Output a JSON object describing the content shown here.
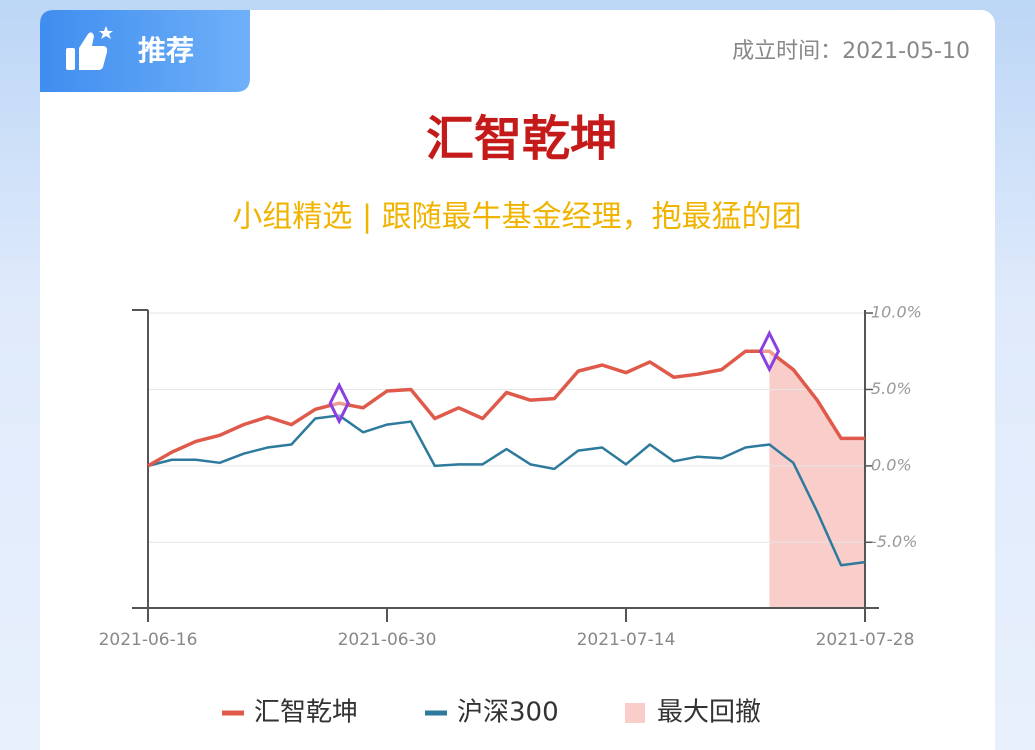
{
  "header": {
    "badge": "推荐",
    "founded": "成立时间：2021-05-10",
    "title": "汇智乾坤",
    "subtitle": "小组精选 | 跟随最牛基金经理，抱最猛的团"
  },
  "chart_data": {
    "type": "line",
    "categories": [
      "2021-06-16",
      null,
      null,
      null,
      null,
      null,
      null,
      null,
      null,
      null,
      "2021-06-30",
      null,
      null,
      null,
      null,
      null,
      null,
      null,
      null,
      null,
      "2021-07-14",
      null,
      null,
      null,
      null,
      null,
      null,
      null,
      null,
      null,
      "2021-07-28"
    ],
    "series": [
      {
        "name": "汇智乾坤",
        "color": "#e05a4b",
        "values": [
          0,
          0.9,
          1.6,
          2.0,
          2.7,
          3.2,
          2.7,
          3.7,
          4.1,
          3.8,
          4.9,
          5.0,
          3.1,
          3.8,
          3.1,
          4.8,
          4.3,
          4.4,
          6.2,
          6.6,
          6.1,
          6.8,
          5.8,
          6.0,
          6.3,
          7.5,
          7.5,
          6.3,
          4.3,
          1.8,
          1.8
        ]
      },
      {
        "name": "沪深300",
        "color": "#2e7a9c",
        "values": [
          0,
          0.4,
          0.4,
          0.2,
          0.8,
          1.2,
          1.4,
          3.1,
          3.3,
          2.2,
          2.7,
          2.9,
          0.0,
          0.1,
          0.1,
          1.1,
          0.1,
          -0.2,
          1.0,
          1.2,
          0.1,
          1.4,
          0.3,
          0.6,
          0.5,
          1.2,
          1.4,
          0.2,
          -3.0,
          -6.5,
          -6.3
        ]
      }
    ],
    "drawdown": {
      "name": "最大回撤",
      "color": "#f9cdca",
      "from": 26,
      "to": 30
    },
    "markers": {
      "color": "#8a3fe0",
      "points": [
        8,
        26
      ]
    },
    "ylim": [
      -9.3,
      10.2
    ],
    "yticks": [
      {
        "value": 10,
        "label": "10.0%"
      },
      {
        "value": 5,
        "label": "5.0%"
      },
      {
        "value": 0,
        "label": "0.0%"
      },
      {
        "value": -5,
        "label": "-5.0%"
      }
    ],
    "grid": true
  }
}
